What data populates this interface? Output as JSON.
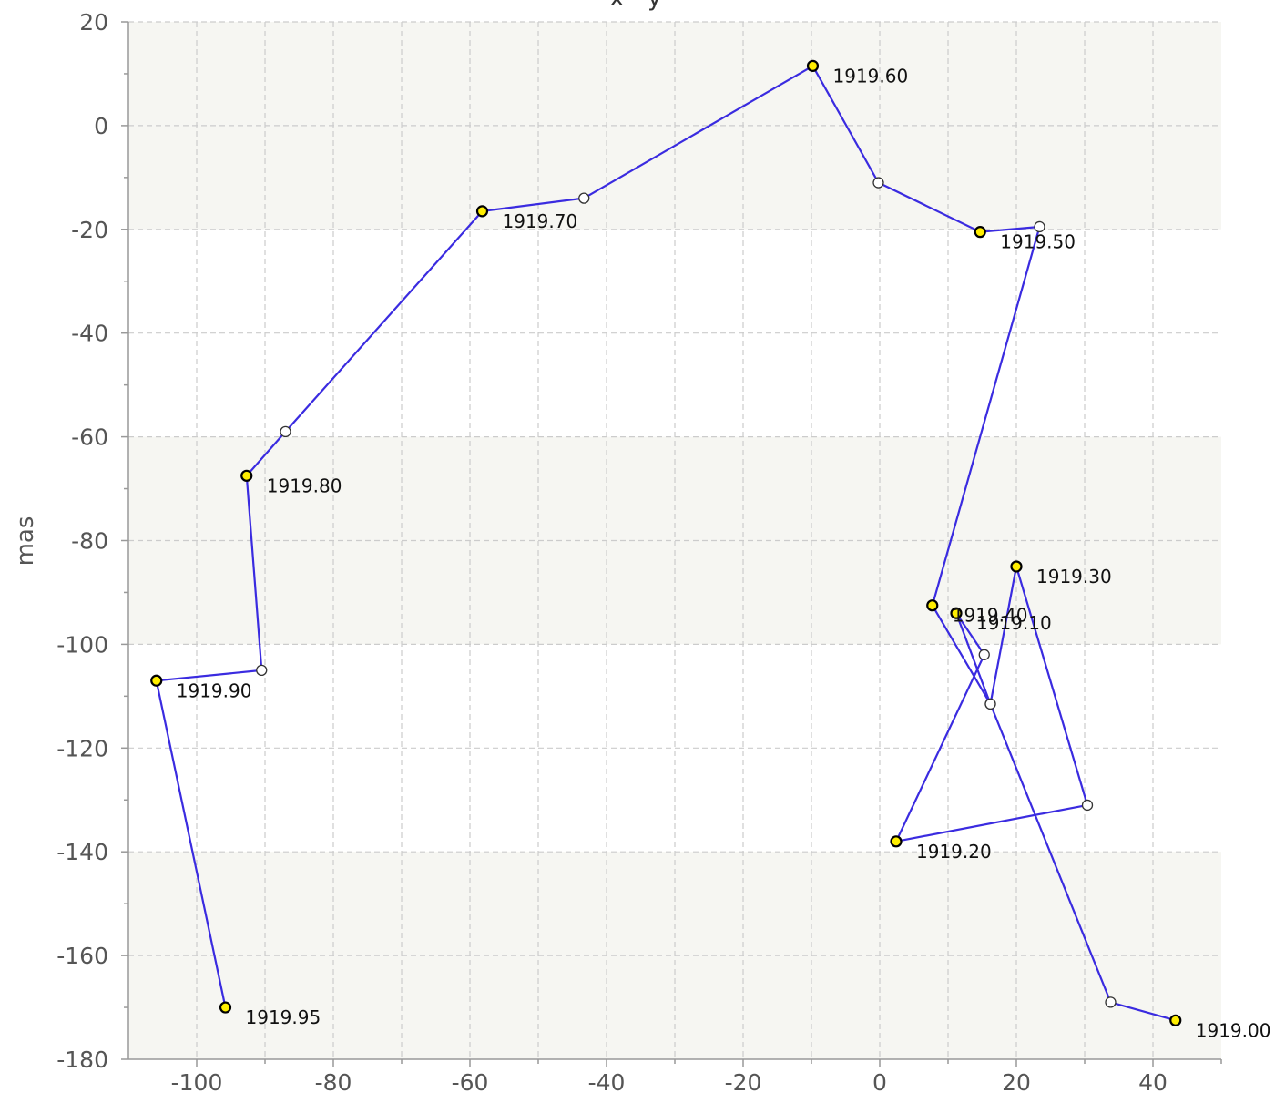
{
  "chart_data": {
    "type": "line",
    "title": "x - y",
    "xlabel": "",
    "ylabel": "mas",
    "xlim": [
      -110,
      50
    ],
    "ylim": [
      -180,
      20
    ],
    "x_ticks": [
      "-100",
      "-80",
      "-60",
      "-40",
      "-20",
      "0",
      "20",
      "40"
    ],
    "y_ticks": [
      "20",
      "0",
      "-20",
      "-40",
      "-60",
      "-80",
      "-100",
      "-120",
      "-140",
      "-160",
      "-180"
    ],
    "grid": true,
    "legend": "none",
    "colors": {
      "line": "#3a2be0",
      "labeled_marker": "#ffee00",
      "open_marker": "#ffffff",
      "band_light": "#f6f6f2",
      "band_white": "#ffffff"
    },
    "series": [
      {
        "points": [
          {
            "x": 43.3,
            "y": -172.5,
            "label": "1919.00"
          },
          {
            "x": 33.8,
            "y": -169.0
          },
          {
            "x": 16.2,
            "y": -111.5
          },
          {
            "x": 11.2,
            "y": -94.0,
            "label": "1919.10"
          },
          {
            "x": 15.3,
            "y": -102.0
          },
          {
            "x": 2.4,
            "y": -138.0,
            "label": "1919.20"
          },
          {
            "x": 30.4,
            "y": -131.0
          },
          {
            "x": 20.0,
            "y": -85.0,
            "label": "1919.30"
          },
          {
            "x": 16.2,
            "y": -111.5
          },
          {
            "x": 7.7,
            "y": -92.5,
            "label": "1919.40"
          },
          {
            "x": 23.4,
            "y": -19.5
          },
          {
            "x": 14.7,
            "y": -20.5,
            "label": "1919.50"
          },
          {
            "x": -0.2,
            "y": -11.0
          },
          {
            "x": -9.8,
            "y": 11.5,
            "label": "1919.60"
          },
          {
            "x": -43.3,
            "y": -14.0
          },
          {
            "x": -58.2,
            "y": -16.5,
            "label": "1919.70"
          },
          {
            "x": -87.0,
            "y": -59.0
          },
          {
            "x": -92.7,
            "y": -67.5,
            "label": "1919.80"
          },
          {
            "x": -90.5,
            "y": -105.0
          },
          {
            "x": -105.9,
            "y": -107.0,
            "label": "1919.90"
          },
          {
            "x": -95.8,
            "y": -170.0,
            "label": "1919.95"
          }
        ]
      }
    ]
  }
}
